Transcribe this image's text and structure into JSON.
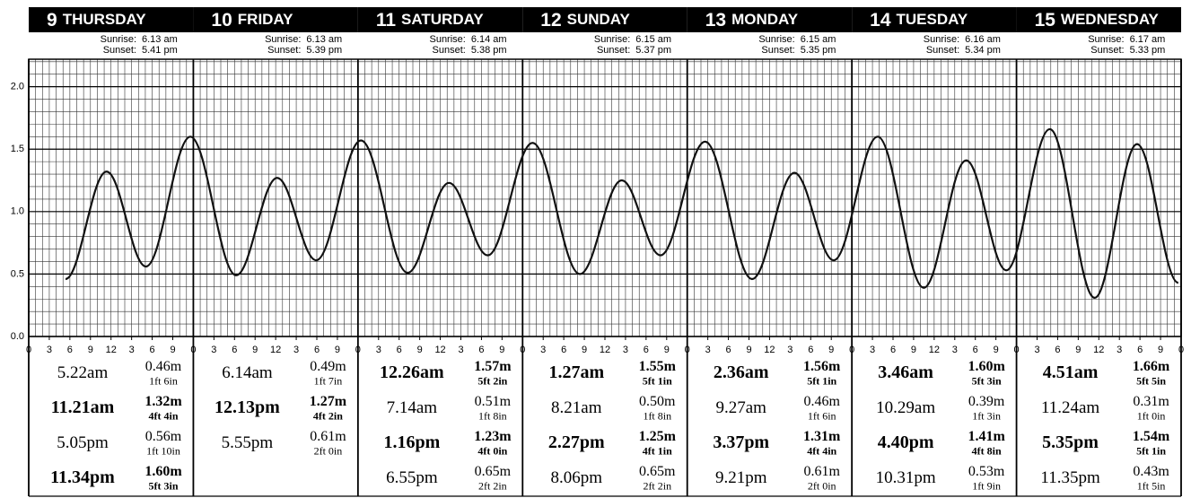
{
  "chart_data": {
    "type": "line",
    "sunrise_label": "Sunrise:",
    "sunset_label": "Sunset:",
    "ylim": [
      0,
      2.22
    ],
    "yticks": [
      {
        "value": 0,
        "label": "0.0"
      },
      0.5,
      {
        "value": 1,
        "label": "1.0"
      },
      1.5,
      {
        "value": 2,
        "label": "2.0"
      }
    ],
    "xticks": [
      0,
      3,
      6,
      9,
      12,
      {
        "value": 15,
        "label": "3"
      },
      {
        "value": 18,
        "label": "6"
      },
      {
        "value": 21,
        "label": "9"
      }
    ],
    "day_hours": 24,
    "color": "#111111",
    "grid": true,
    "days": [
      {
        "day": "9",
        "name": "THURSDAY",
        "sunrise": "6.13 am",
        "sunset": "5.41 pm",
        "tides": [
          {
            "time": "5.22am",
            "height": 0.46,
            "height_label": "0.46m",
            "feet": "1ft 6in",
            "high": false
          },
          {
            "time": "11.21am",
            "height": 1.32,
            "height_label": "1.32m",
            "feet": "4ft 4in",
            "high": true
          },
          {
            "time": "5.05pm",
            "height": 0.56,
            "height_label": "0.56m",
            "feet": "1ft 10in",
            "high": false
          },
          {
            "time": "11.34pm",
            "height": 1.6,
            "height_label": "1.60m",
            "feet": "5ft 3in",
            "high": true
          }
        ]
      },
      {
        "day": "10",
        "name": "FRIDAY",
        "sunrise": "6.13 am",
        "sunset": "5.39 pm",
        "tides": [
          {
            "time": "6.14am",
            "height": 0.49,
            "height_label": "0.49m",
            "feet": "1ft 7in",
            "high": false
          },
          {
            "time": "12.13pm",
            "height": 1.27,
            "height_label": "1.27m",
            "feet": "4ft 2in",
            "high": true
          },
          {
            "time": "5.55pm",
            "height": 0.61,
            "height_label": "0.61m",
            "feet": "2ft 0in",
            "high": false
          }
        ]
      },
      {
        "day": "11",
        "name": "SATURDAY",
        "sunrise": "6.14 am",
        "sunset": "5.38 pm",
        "tides": [
          {
            "time": "12.26am",
            "height": 1.57,
            "height_label": "1.57m",
            "feet": "5ft 2in",
            "high": true
          },
          {
            "time": "7.14am",
            "height": 0.51,
            "height_label": "0.51m",
            "feet": "1ft 8in",
            "high": false
          },
          {
            "time": "1.16pm",
            "height": 1.23,
            "height_label": "1.23m",
            "feet": "4ft 0in",
            "high": true
          },
          {
            "time": "6.55pm",
            "height": 0.65,
            "height_label": "0.65m",
            "feet": "2ft 2in",
            "high": false
          }
        ]
      },
      {
        "day": "12",
        "name": "SUNDAY",
        "sunrise": "6.15 am",
        "sunset": "5.37 pm",
        "tides": [
          {
            "time": "1.27am",
            "height": 1.55,
            "height_label": "1.55m",
            "feet": "5ft 1in",
            "high": true
          },
          {
            "time": "8.21am",
            "height": 0.5,
            "height_label": "0.50m",
            "feet": "1ft 8in",
            "high": false
          },
          {
            "time": "2.27pm",
            "height": 1.25,
            "height_label": "1.25m",
            "feet": "4ft 1in",
            "high": true
          },
          {
            "time": "8.06pm",
            "height": 0.65,
            "height_label": "0.65m",
            "feet": "2ft 2in",
            "high": false
          }
        ]
      },
      {
        "day": "13",
        "name": "MONDAY",
        "sunrise": "6.15 am",
        "sunset": "5.35 pm",
        "tides": [
          {
            "time": "2.36am",
            "height": 1.56,
            "height_label": "1.56m",
            "feet": "5ft 1in",
            "high": true
          },
          {
            "time": "9.27am",
            "height": 0.46,
            "height_label": "0.46m",
            "feet": "1ft 6in",
            "high": false
          },
          {
            "time": "3.37pm",
            "height": 1.31,
            "height_label": "1.31m",
            "feet": "4ft 4in",
            "high": true
          },
          {
            "time": "9.21pm",
            "height": 0.61,
            "height_label": "0.61m",
            "feet": "2ft 0in",
            "high": false
          }
        ]
      },
      {
        "day": "14",
        "name": "TUESDAY",
        "sunrise": "6.16 am",
        "sunset": "5.34 pm",
        "tides": [
          {
            "time": "3.46am",
            "height": 1.6,
            "height_label": "1.60m",
            "feet": "5ft 3in",
            "high": true
          },
          {
            "time": "10.29am",
            "height": 0.39,
            "height_label": "0.39m",
            "feet": "1ft 3in",
            "high": false
          },
          {
            "time": "4.40pm",
            "height": 1.41,
            "height_label": "1.41m",
            "feet": "4ft 8in",
            "high": true
          },
          {
            "time": "10.31pm",
            "height": 0.53,
            "height_label": "0.53m",
            "feet": "1ft 9in",
            "high": false
          }
        ]
      },
      {
        "day": "15",
        "name": "WEDNESDAY",
        "sunrise": "6.17 am",
        "sunset": "5.33 pm",
        "tides": [
          {
            "time": "4.51am",
            "height": 1.66,
            "height_label": "1.66m",
            "feet": "5ft 5in",
            "high": true
          },
          {
            "time": "11.24am",
            "height": 0.31,
            "height_label": "0.31m",
            "feet": "1ft 0in",
            "high": false
          },
          {
            "time": "5.35pm",
            "height": 1.54,
            "height_label": "1.54m",
            "feet": "5ft 1in",
            "high": true
          },
          {
            "time": "11.35pm",
            "height": 0.43,
            "height_label": "0.43m",
            "feet": "1ft 5in",
            "high": false
          }
        ]
      }
    ]
  }
}
